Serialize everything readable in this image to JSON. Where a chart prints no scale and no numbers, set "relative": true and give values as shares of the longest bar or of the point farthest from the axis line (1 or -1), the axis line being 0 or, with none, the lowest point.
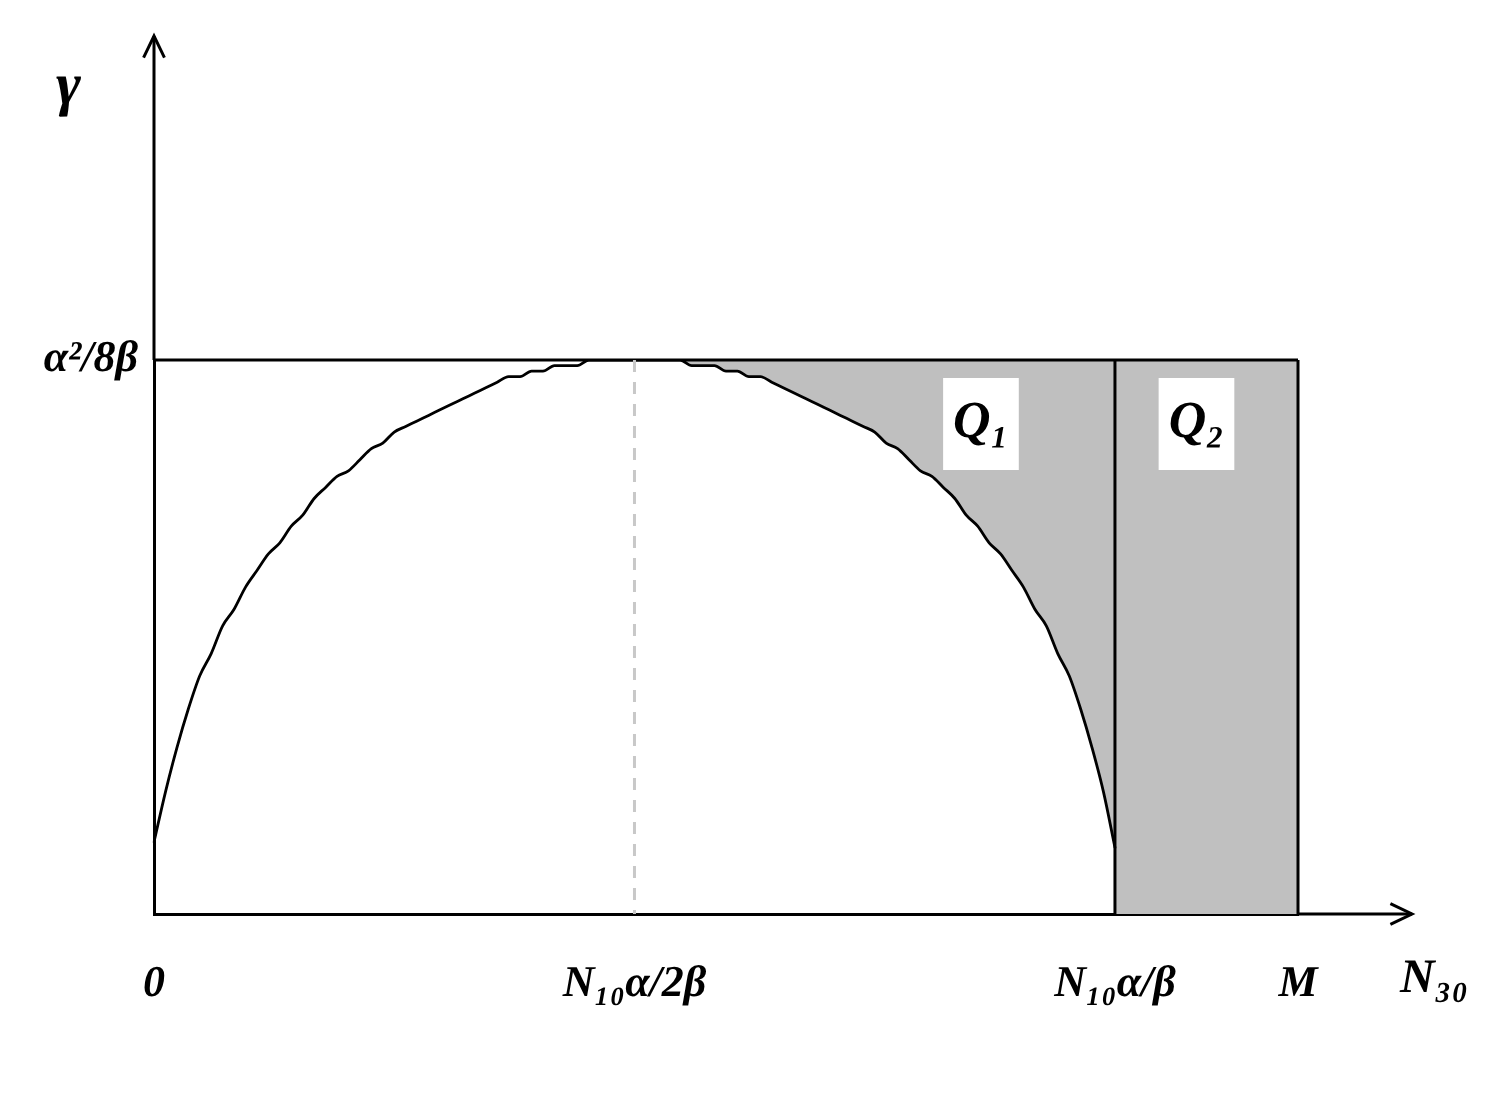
{
  "chart_data": {
    "type": "line",
    "relative": true,
    "xlabel": "N₃₀",
    "ylabel": "γ",
    "marker": "none",
    "categories": [
      "0",
      null,
      null,
      null,
      null,
      null,
      null,
      null,
      null,
      null,
      null,
      null,
      null,
      null,
      null,
      null,
      null,
      null,
      null,
      null,
      null,
      null,
      null,
      null,
      null,
      null,
      null,
      null,
      null,
      null,
      null,
      null,
      null,
      null,
      null,
      null,
      null,
      null,
      null,
      null,
      null,
      null,
      "N₁₀α/2β",
      null,
      null,
      null,
      null,
      null,
      null,
      null,
      null,
      null,
      null,
      null,
      null,
      null,
      null,
      null,
      null,
      null,
      null,
      null,
      null,
      null,
      null,
      null,
      null,
      null,
      null,
      null,
      null,
      null,
      null,
      null,
      null,
      null,
      null,
      null,
      null,
      null,
      null,
      null,
      null,
      null,
      "N₁₀α/β",
      null,
      null,
      null,
      null,
      null,
      null,
      null,
      null,
      null,
      null,
      null,
      null,
      null,
      null,
      null,
      "M"
    ],
    "series": [
      {
        "color": "#000000",
        "values": [
          0.13,
          0.22,
          0.3,
          0.37,
          0.43,
          0.47,
          0.52,
          0.55,
          0.59,
          0.62,
          0.65,
          0.67,
          0.7,
          0.72,
          0.75,
          0.77,
          0.79,
          0.8,
          0.82,
          0.84,
          0.85,
          0.87,
          0.88,
          0.89,
          0.9,
          0.91,
          0.92,
          0.93,
          0.94,
          0.95,
          0.96,
          0.97,
          0.97,
          0.98,
          0.98,
          0.99,
          0.99,
          0.99,
          1,
          1,
          1,
          1,
          1,
          1,
          1,
          1,
          1,
          0.99,
          0.99,
          0.99,
          0.98,
          0.98,
          0.97,
          0.97,
          0.96,
          0.95,
          0.94,
          0.93,
          0.92,
          0.91,
          0.9,
          0.89,
          0.88,
          0.87,
          0.85,
          0.84,
          0.82,
          0.8,
          0.79,
          0.77,
          0.75,
          0.72,
          0.7,
          0.67,
          0.65,
          0.62,
          0.59,
          0.55,
          0.52,
          0.47,
          0.43,
          0.37,
          0.3,
          0.22,
          0.12,
          null,
          null,
          null,
          null,
          null,
          null,
          null,
          null,
          null,
          null,
          null,
          null,
          null,
          null,
          null,
          null
        ],
        "lower": [
          null,
          null,
          null,
          null,
          null,
          null,
          null,
          null,
          null,
          null,
          null,
          null,
          null,
          null,
          null,
          null,
          null,
          null,
          null,
          null,
          null,
          null,
          null,
          null,
          null,
          null,
          null,
          null,
          null,
          null,
          null,
          null,
          null,
          null,
          null,
          null,
          null,
          null,
          null,
          null,
          null,
          null,
          1,
          1,
          1,
          1,
          1,
          0.99,
          0.99,
          0.99,
          0.98,
          0.98,
          0.97,
          0.97,
          0.96,
          0.95,
          0.94,
          0.93,
          0.92,
          0.91,
          0.9,
          0.89,
          0.88,
          0.87,
          0.85,
          0.84,
          0.82,
          0.8,
          0.79,
          0.77,
          0.75,
          0.72,
          0.7,
          0.67,
          0.65,
          0.62,
          0.59,
          0.55,
          0.52,
          0.47,
          0.43,
          0.37,
          0.3,
          0.22,
          0.12,
          null,
          null,
          null,
          null,
          null,
          null,
          null,
          null,
          null,
          null,
          null,
          null,
          null,
          null,
          null,
          null
        ],
        "upper": [
          null,
          null,
          null,
          null,
          null,
          null,
          null,
          null,
          null,
          null,
          null,
          null,
          null,
          null,
          null,
          null,
          null,
          null,
          null,
          null,
          null,
          null,
          null,
          null,
          null,
          null,
          null,
          null,
          null,
          null,
          null,
          null,
          null,
          null,
          null,
          null,
          null,
          null,
          null,
          null,
          null,
          null,
          1,
          1,
          1,
          1,
          1,
          1,
          1,
          1,
          1,
          1,
          1,
          1,
          1,
          1,
          1,
          1,
          1,
          1,
          1,
          1,
          1,
          1,
          1,
          1,
          1,
          1,
          1,
          1,
          1,
          1,
          1,
          1,
          1,
          1,
          1,
          1,
          1,
          1,
          1,
          1,
          1,
          1,
          1,
          null,
          null,
          null,
          null,
          null,
          null,
          null,
          null,
          null,
          null,
          null,
          null,
          null,
          null,
          null,
          null
        ]
      }
    ],
    "annotations": [
      "Q₁"
    ],
    "bands": [
      {
        "axis": "x",
        "from": "N₁₀α/β",
        "to": "M",
        "label": "Q₂",
        "color": "#c0c0c0"
      }
    ],
    "ref_lines": [
      {
        "axis": "y",
        "value": 1,
        "label": "α²/8β",
        "color": "#000000"
      },
      {
        "axis": "x",
        "value": "N₁₀α/2β",
        "color": "#c8c8c8",
        "line_style": "dashed"
      },
      {
        "axis": "x",
        "value": "N₁₀α/β",
        "color": "#000000"
      }
    ]
  }
}
